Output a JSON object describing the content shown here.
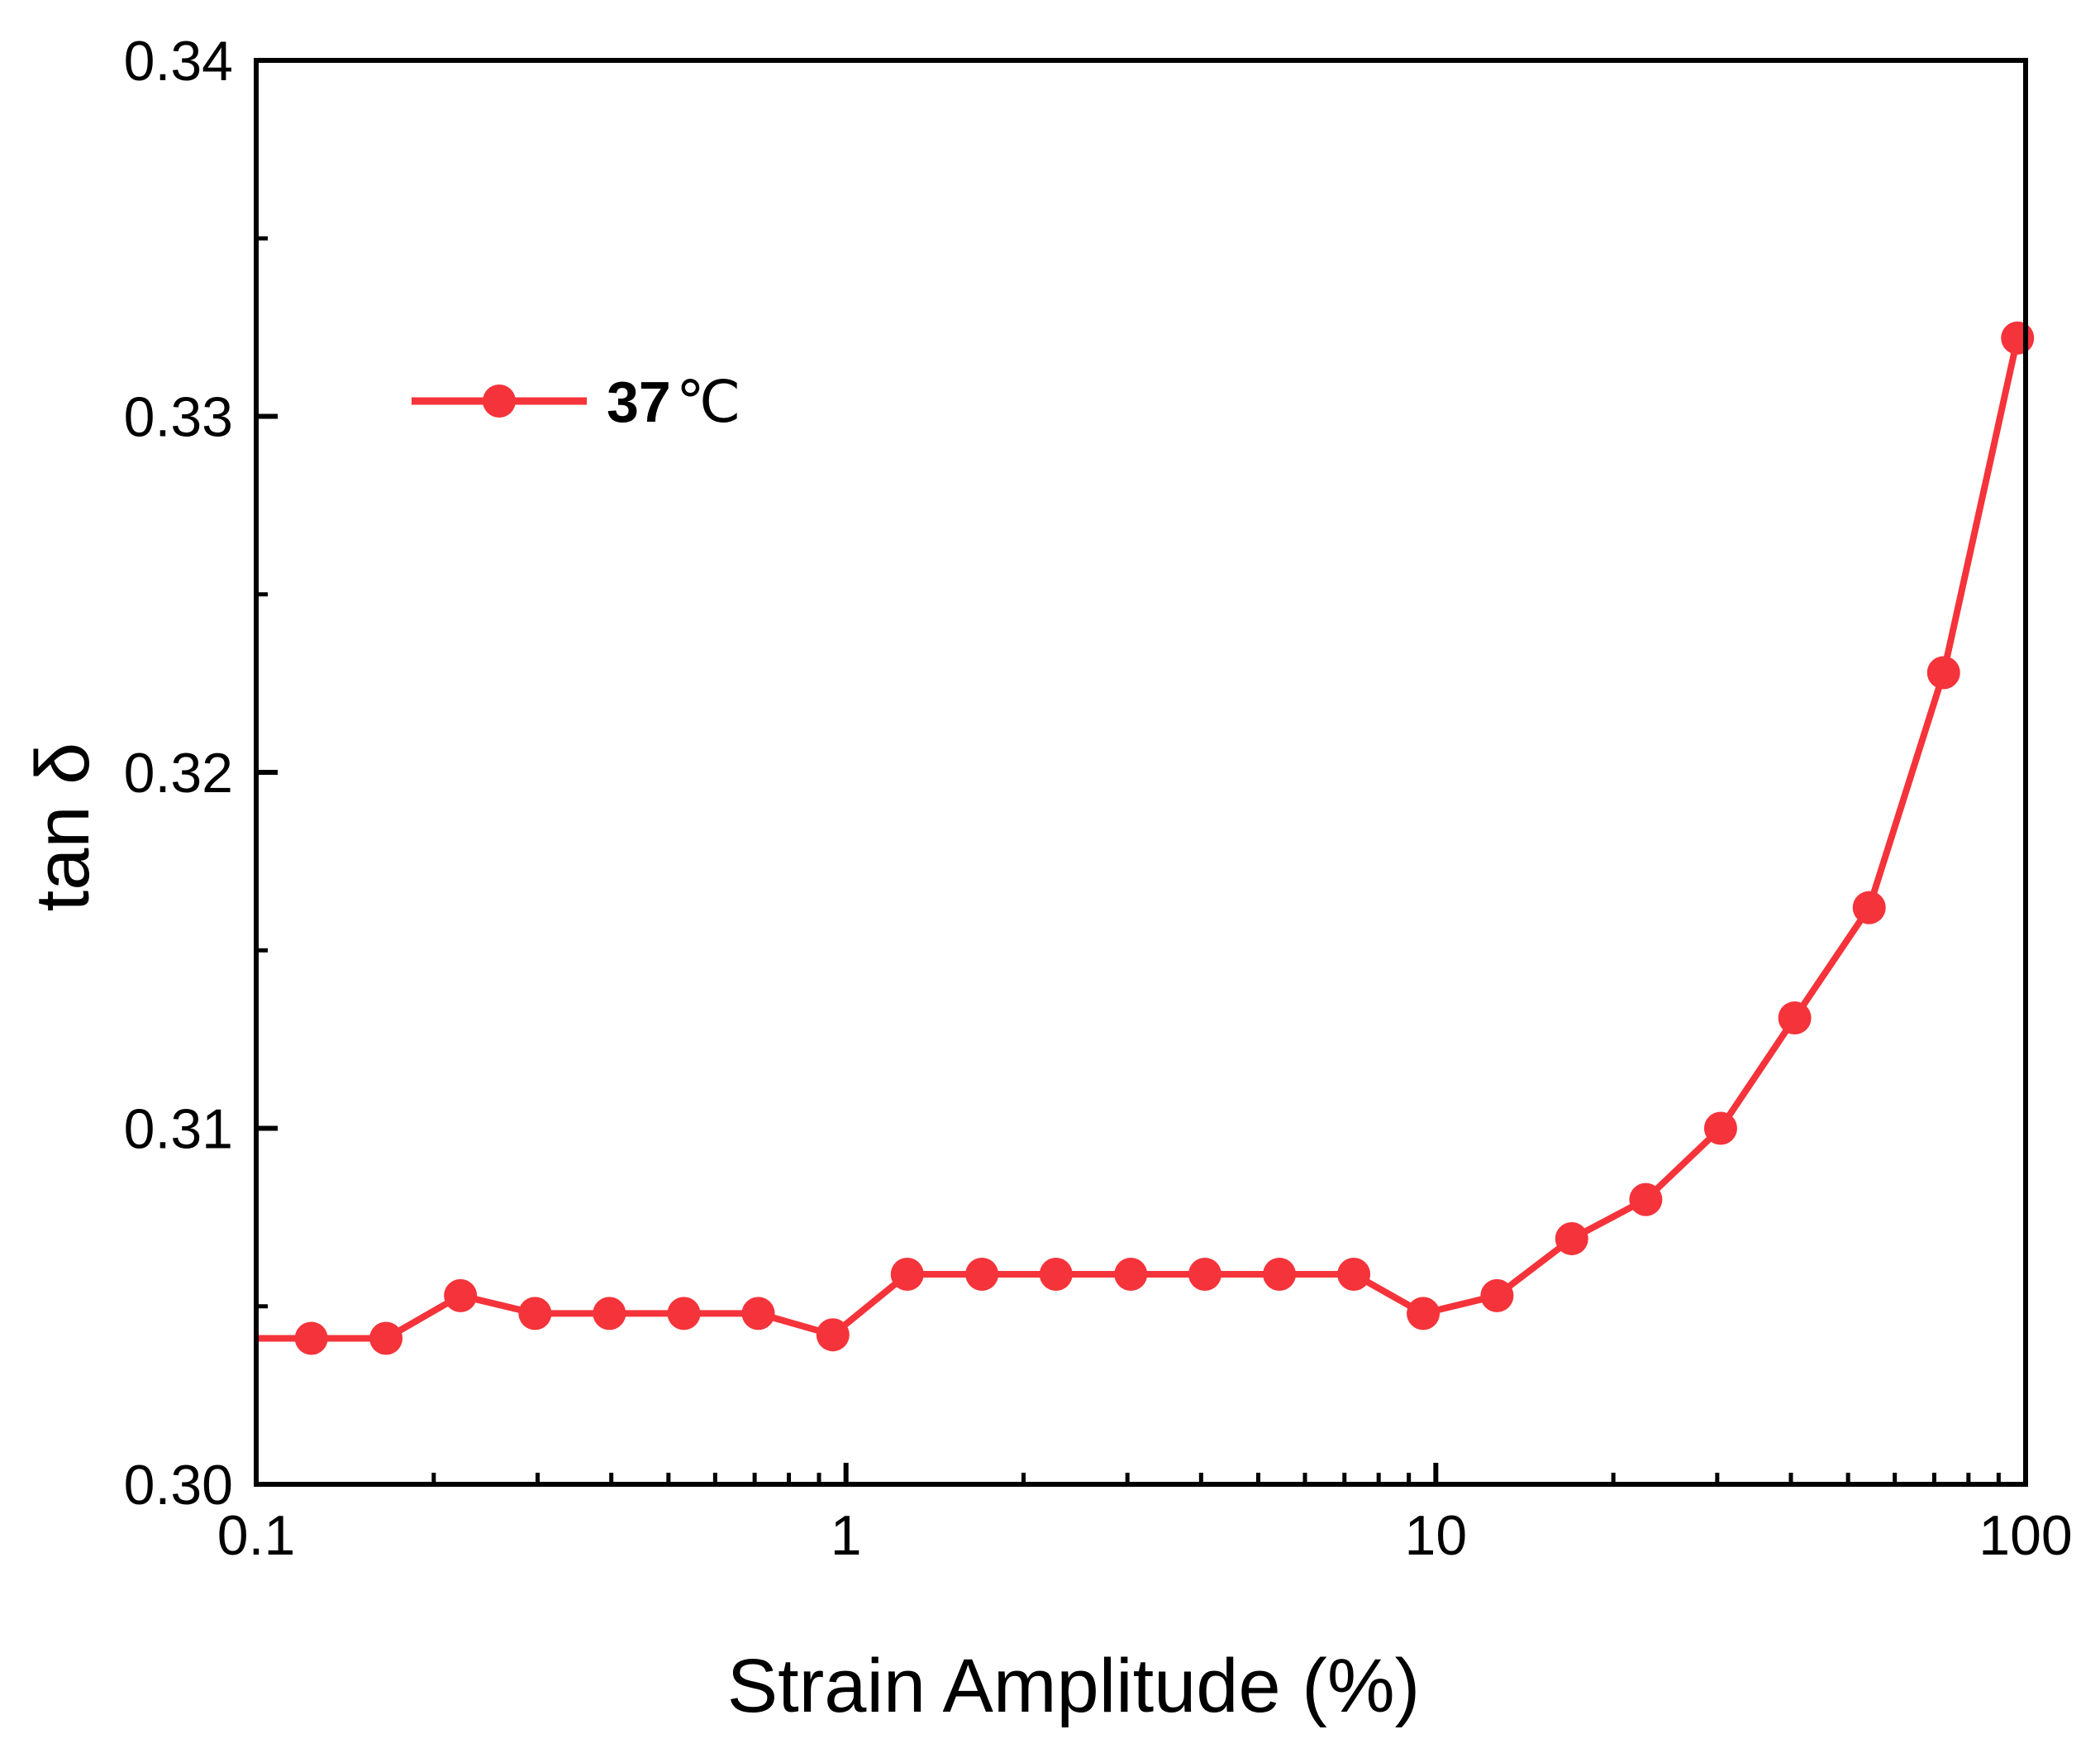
{
  "chart_data": {
    "type": "line",
    "title": "",
    "xlabel": "Strain Amplitude (%)",
    "ylabel": "tan δ",
    "xscale": "log",
    "xlim": [
      0.1,
      100
    ],
    "ylim": [
      0.3,
      0.34
    ],
    "xticks": [
      0.1,
      1,
      10,
      100
    ],
    "xtick_labels": [
      "0.1",
      "1",
      "10",
      "100"
    ],
    "yticks": [
      0.3,
      0.31,
      0.32,
      0.33,
      0.34
    ],
    "ytick_labels": [
      "0.30",
      "0.31",
      "0.32",
      "0.33",
      "0.34"
    ],
    "grid": false,
    "legend_position": "top-left",
    "colors": {
      "series": "#f5333a",
      "axis": "#000000"
    },
    "series": [
      {
        "name": "37℃",
        "legend_number": "37",
        "legend_unit": "℃",
        "x": [
          0.124,
          0.166,
          0.222,
          0.297,
          0.397,
          0.531,
          0.71,
          0.95,
          1.27,
          1.7,
          2.27,
          3.04,
          4.06,
          5.43,
          7.26,
          9.52,
          12.7,
          17.0,
          22.7,
          30.4,
          40.6,
          54.3,
          72.6,
          96.9
        ],
        "y": [
          0.3041,
          0.3041,
          0.3053,
          0.3048,
          0.3048,
          0.3048,
          0.3048,
          0.3042,
          0.3059,
          0.3059,
          0.3059,
          0.3059,
          0.3059,
          0.3059,
          0.3059,
          0.3048,
          0.3053,
          0.3069,
          0.308,
          0.31,
          0.3131,
          0.3162,
          0.3228,
          0.3322
        ],
        "line_start_x": 0.1,
        "line_start_y": 0.3041
      }
    ]
  }
}
